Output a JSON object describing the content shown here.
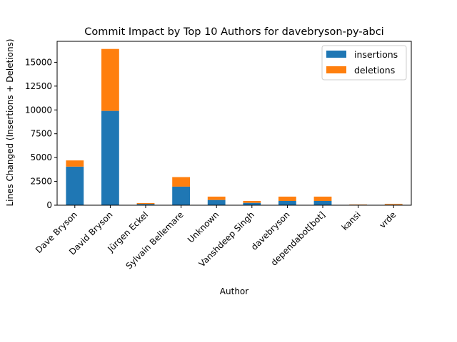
{
  "chart_data": {
    "type": "bar",
    "stacked": true,
    "title": "Commit Impact by Top 10 Authors for davebryson-py-abci",
    "xlabel": "Author",
    "ylabel": "Lines Changed (Insertions + Deletions)",
    "ylim": [
      0,
      17200
    ],
    "yticks": [
      0,
      2500,
      5000,
      7500,
      10000,
      12500,
      15000
    ],
    "ytick_labels": [
      "0",
      "2500",
      "5000",
      "7500",
      "10000",
      "12500",
      "15000"
    ],
    "categories": [
      "Dave Bryson",
      "David Bryson",
      "Jürgen Eckel",
      "Sylvain Bellemare",
      "Unknown",
      "Vanshdeep Singh",
      "davebryson",
      "dependabot[bot]",
      "kansi",
      "vrde"
    ],
    "series": [
      {
        "name": "insertions",
        "color": "#1f77b4",
        "values": [
          4050,
          9900,
          130,
          1950,
          550,
          250,
          450,
          450,
          50,
          60
        ]
      },
      {
        "name": "deletions",
        "color": "#ff7f0e",
        "values": [
          650,
          6500,
          100,
          1000,
          350,
          200,
          450,
          450,
          30,
          80
        ]
      }
    ],
    "legend_position": "top-right",
    "grid": false
  }
}
